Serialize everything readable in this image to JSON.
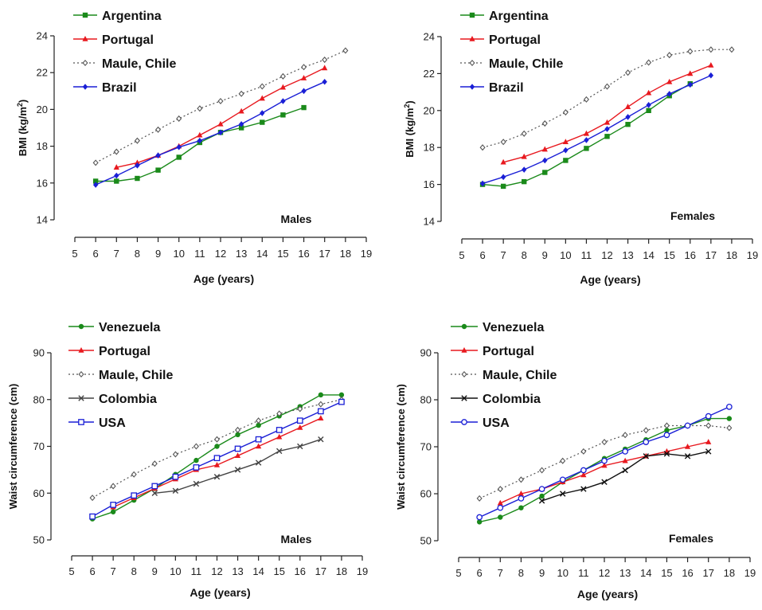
{
  "chart_data": [
    {
      "type": "line",
      "panel_label": "Males",
      "xlabel": "Age (years)",
      "ylabel": "BMI (kg/m2)",
      "ylabel_main": "BMI (kg/m",
      "ylabel_sup": "2",
      "ylabel_close": ")",
      "xlim": [
        5,
        19
      ],
      "ylim": [
        14,
        24
      ],
      "xticks": [
        5,
        6,
        7,
        8,
        9,
        10,
        11,
        12,
        13,
        14,
        15,
        16,
        17,
        18,
        19
      ],
      "yticks": [
        14,
        16,
        18,
        20,
        22,
        24
      ],
      "legend_position": "top-left",
      "series": [
        {
          "name": "Argentina",
          "color": "#1a8a1a",
          "dash": "solid",
          "marker": "square",
          "x": [
            6,
            7,
            8,
            9,
            10,
            11,
            12,
            13,
            14,
            15,
            16
          ],
          "y": [
            16.1,
            16.1,
            16.25,
            16.7,
            17.4,
            18.2,
            18.75,
            19.0,
            19.3,
            19.7,
            20.1
          ]
        },
        {
          "name": "Portugal",
          "color": "#e8191f",
          "dash": "solid",
          "marker": "triangle",
          "x": [
            7,
            8,
            9,
            10,
            11,
            12,
            13,
            14,
            15,
            16,
            17
          ],
          "y": [
            16.85,
            17.1,
            17.5,
            18.0,
            18.6,
            19.2,
            19.9,
            20.6,
            21.2,
            21.7,
            22.25
          ]
        },
        {
          "name": "Maule, Chile",
          "color": "#555555",
          "dash": "dotted",
          "marker": "diamond-open",
          "x": [
            6,
            7,
            8,
            9,
            10,
            11,
            12,
            13,
            14,
            15,
            16,
            17,
            18
          ],
          "y": [
            17.1,
            17.7,
            18.3,
            18.9,
            19.5,
            20.05,
            20.45,
            20.85,
            21.25,
            21.8,
            22.3,
            22.7,
            23.2
          ]
        },
        {
          "name": "Brazil",
          "color": "#1a1fd6",
          "dash": "solid",
          "marker": "diamond",
          "x": [
            6,
            7,
            8,
            9,
            10,
            11,
            12,
            13,
            14,
            15,
            16,
            17
          ],
          "y": [
            15.9,
            16.4,
            16.95,
            17.5,
            17.95,
            18.3,
            18.75,
            19.2,
            19.8,
            20.45,
            21.0,
            21.5
          ]
        }
      ]
    },
    {
      "type": "line",
      "panel_label": "Females",
      "xlabel": "Age (years)",
      "ylabel": "BMI (kg/m2)",
      "ylabel_main": "BMI (kg/m",
      "ylabel_sup": "2",
      "ylabel_close": ")",
      "xlim": [
        5,
        19
      ],
      "ylim": [
        14,
        24
      ],
      "xticks": [
        5,
        6,
        7,
        8,
        9,
        10,
        11,
        12,
        13,
        14,
        15,
        16,
        17,
        18,
        19
      ],
      "yticks": [
        14,
        16,
        18,
        20,
        22,
        24
      ],
      "legend_position": "top-left",
      "series": [
        {
          "name": "Argentina",
          "color": "#1a8a1a",
          "dash": "solid",
          "marker": "square",
          "x": [
            6,
            7,
            8,
            9,
            10,
            11,
            12,
            13,
            14,
            15,
            16
          ],
          "y": [
            16.0,
            15.9,
            16.15,
            16.65,
            17.3,
            17.95,
            18.6,
            19.25,
            20.0,
            20.8,
            21.45
          ]
        },
        {
          "name": "Portugal",
          "color": "#e8191f",
          "dash": "solid",
          "marker": "triangle",
          "x": [
            7,
            8,
            9,
            10,
            11,
            12,
            13,
            14,
            15,
            16,
            17
          ],
          "y": [
            17.2,
            17.5,
            17.9,
            18.3,
            18.75,
            19.35,
            20.2,
            20.95,
            21.55,
            22.0,
            22.45
          ]
        },
        {
          "name": "Maule, Chile",
          "color": "#555555",
          "dash": "dotted",
          "marker": "diamond-open",
          "x": [
            6,
            7,
            8,
            9,
            10,
            11,
            12,
            13,
            14,
            15,
            16,
            17,
            18
          ],
          "y": [
            18.0,
            18.3,
            18.75,
            19.3,
            19.9,
            20.6,
            21.3,
            22.05,
            22.6,
            23.0,
            23.2,
            23.3,
            23.3
          ]
        },
        {
          "name": "Brazil",
          "color": "#1a1fd6",
          "dash": "solid",
          "marker": "diamond",
          "x": [
            6,
            7,
            8,
            9,
            10,
            11,
            12,
            13,
            14,
            15,
            16,
            17
          ],
          "y": [
            16.05,
            16.4,
            16.8,
            17.3,
            17.85,
            18.4,
            19.0,
            19.65,
            20.3,
            20.9,
            21.4,
            21.9
          ]
        }
      ]
    },
    {
      "type": "line",
      "panel_label": "Males",
      "xlabel": "Age (years)",
      "ylabel": "Waist circumference (cm)",
      "xlim": [
        5,
        19
      ],
      "ylim": [
        50,
        90
      ],
      "xticks": [
        5,
        6,
        7,
        8,
        9,
        10,
        11,
        12,
        13,
        14,
        15,
        16,
        17,
        18,
        19
      ],
      "yticks": [
        50,
        60,
        70,
        80,
        90
      ],
      "legend_position": "top-left",
      "series": [
        {
          "name": "Venezuela",
          "color": "#1a8a1a",
          "dash": "solid",
          "marker": "circle",
          "x": [
            6,
            7,
            8,
            9,
            10,
            11,
            12,
            13,
            14,
            15,
            16,
            17,
            18
          ],
          "y": [
            54.5,
            56.0,
            58.5,
            61.0,
            64.0,
            67.0,
            70.0,
            72.5,
            74.5,
            76.5,
            78.5,
            81.0,
            81.0
          ]
        },
        {
          "name": "Portugal",
          "color": "#e8191f",
          "dash": "solid",
          "marker": "triangle",
          "x": [
            7,
            8,
            9,
            10,
            11,
            12,
            13,
            14,
            15,
            16,
            17
          ],
          "y": [
            57.0,
            59.0,
            61.0,
            63.0,
            65.0,
            66.0,
            68.0,
            70.0,
            72.0,
            74.0,
            76.0
          ]
        },
        {
          "name": "Maule, Chile",
          "color": "#555555",
          "dash": "dotted",
          "marker": "diamond-open",
          "x": [
            6,
            7,
            8,
            9,
            10,
            11,
            12,
            13,
            14,
            15,
            16,
            17,
            18
          ],
          "y": [
            59.0,
            61.5,
            64.0,
            66.3,
            68.3,
            70.0,
            71.5,
            73.5,
            75.5,
            77.0,
            78.0,
            79.0,
            80.0
          ]
        },
        {
          "name": "Colombia",
          "color": "#444444",
          "dash": "solid",
          "marker": "x",
          "x": [
            9,
            10,
            11,
            12,
            13,
            14,
            15,
            16,
            17
          ],
          "y": [
            60.0,
            60.5,
            62.0,
            63.5,
            65.0,
            66.5,
            69.0,
            70.0,
            71.5
          ]
        },
        {
          "name": "USA",
          "color": "#1a1fd6",
          "dash": "solid",
          "marker": "square-open",
          "x": [
            6,
            7,
            8,
            9,
            10,
            11,
            12,
            13,
            14,
            15,
            16,
            17,
            18
          ],
          "y": [
            55.0,
            57.5,
            59.5,
            61.5,
            63.5,
            65.5,
            67.5,
            69.5,
            71.5,
            73.5,
            75.5,
            77.5,
            79.5
          ]
        }
      ]
    },
    {
      "type": "line",
      "panel_label": "Females",
      "xlabel": "Age (years)",
      "ylabel": "Waist circumference (cm)",
      "xlim": [
        5,
        19
      ],
      "ylim": [
        50,
        90
      ],
      "xticks": [
        5,
        6,
        7,
        8,
        9,
        10,
        11,
        12,
        13,
        14,
        15,
        16,
        17,
        18,
        19
      ],
      "yticks": [
        50,
        60,
        70,
        80,
        90
      ],
      "legend_position": "top-left",
      "series": [
        {
          "name": "Venezuela",
          "color": "#1a8a1a",
          "dash": "solid",
          "marker": "circle",
          "x": [
            6,
            7,
            8,
            9,
            10,
            11,
            12,
            13,
            14,
            15,
            16,
            17,
            18
          ],
          "y": [
            54.0,
            55.0,
            57.0,
            59.5,
            62.5,
            65.0,
            67.5,
            69.5,
            71.5,
            73.5,
            74.5,
            76.0,
            76.0
          ]
        },
        {
          "name": "Portugal",
          "color": "#e8191f",
          "dash": "solid",
          "marker": "triangle",
          "x": [
            7,
            8,
            9,
            10,
            11,
            12,
            13,
            14,
            15,
            16,
            17
          ],
          "y": [
            58.0,
            60.0,
            61.0,
            62.5,
            64.0,
            66.0,
            67.0,
            68.0,
            69.0,
            70.0,
            71.0
          ]
        },
        {
          "name": "Maule, Chile",
          "color": "#555555",
          "dash": "dotted",
          "marker": "diamond-open",
          "x": [
            6,
            7,
            8,
            9,
            10,
            11,
            12,
            13,
            14,
            15,
            16,
            17,
            18
          ],
          "y": [
            59.0,
            61.0,
            63.0,
            65.0,
            67.0,
            69.0,
            71.0,
            72.5,
            73.5,
            74.5,
            74.5,
            74.5,
            74.0
          ]
        },
        {
          "name": "Colombia",
          "color": "#111111",
          "dash": "solid",
          "marker": "x",
          "x": [
            9,
            10,
            11,
            12,
            13,
            14,
            15,
            16,
            17
          ],
          "y": [
            58.5,
            60.0,
            61.0,
            62.5,
            65.0,
            68.0,
            68.5,
            68.0,
            69.0
          ]
        },
        {
          "name": "USA",
          "color": "#1a1fd6",
          "dash": "solid",
          "marker": "circle-open",
          "x": [
            6,
            7,
            8,
            9,
            10,
            11,
            12,
            13,
            14,
            15,
            16,
            17,
            18
          ],
          "y": [
            55.0,
            57.0,
            59.0,
            61.0,
            63.0,
            65.0,
            67.0,
            69.0,
            71.0,
            72.5,
            74.5,
            76.5,
            78.5
          ]
        }
      ]
    }
  ]
}
